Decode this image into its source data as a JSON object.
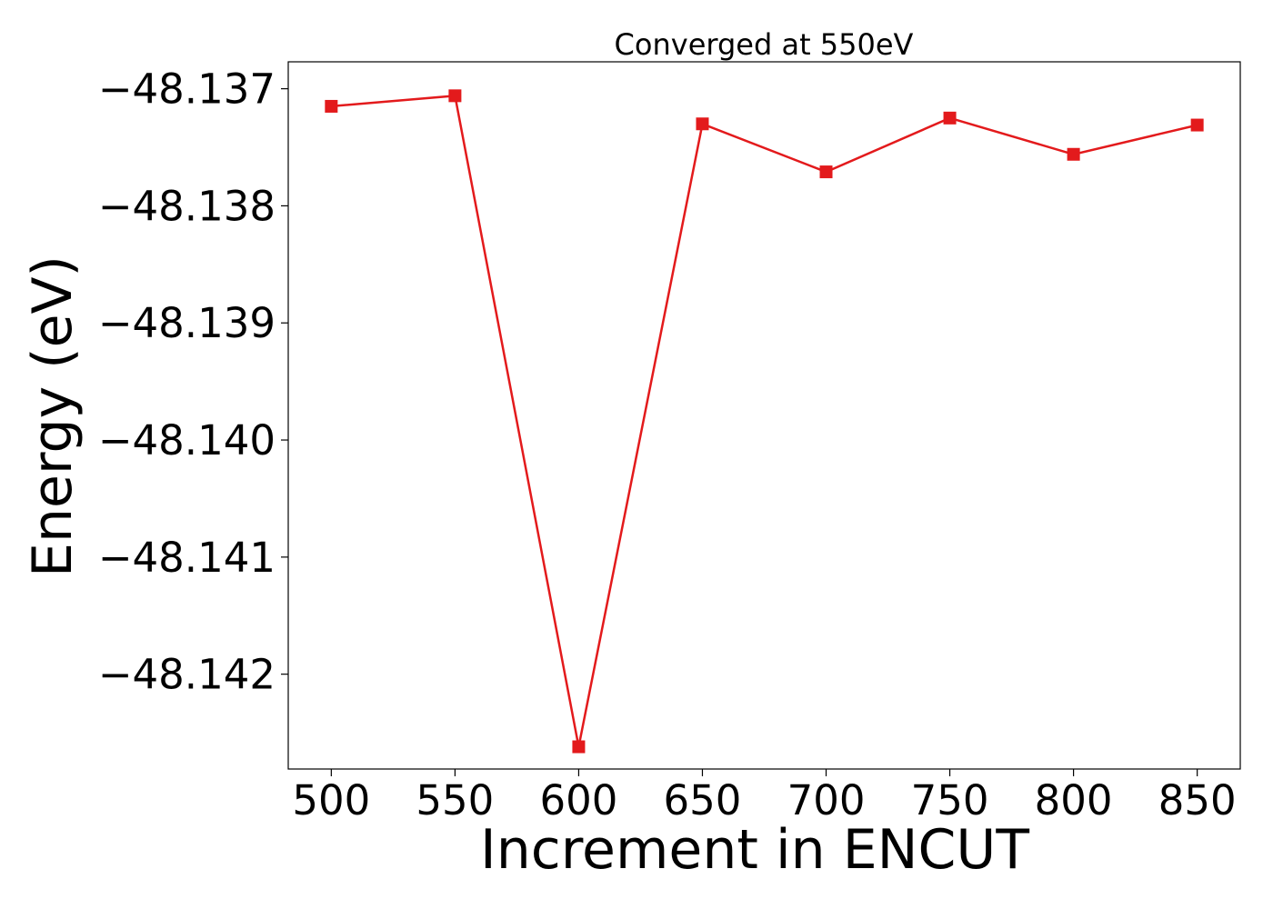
{
  "chart_data": {
    "type": "line",
    "title": "Converged at 550eV",
    "xlabel": "Increment in ENCUT",
    "ylabel": "Energy (eV)",
    "x": [
      500,
      550,
      600,
      650,
      700,
      750,
      800,
      850
    ],
    "xticks": [
      500,
      550,
      600,
      650,
      700,
      750,
      800,
      850
    ],
    "xtick_labels": [
      "500",
      "550",
      "600",
      "650",
      "700",
      "750",
      "800",
      "850"
    ],
    "yticks": [
      -48.137,
      -48.138,
      -48.139,
      -48.14,
      -48.141,
      -48.142
    ],
    "ytick_labels": [
      "−48.137",
      "−48.138",
      "−48.139",
      "−48.140",
      "−48.141",
      "−48.142"
    ],
    "xlim": [
      482.6,
      867.4
    ],
    "ylim": [
      -48.14281,
      -48.13677
    ],
    "grid": false,
    "series": [
      {
        "color": "#e31a1c",
        "marker": "square",
        "values": [
          -48.13715,
          -48.13706,
          -48.14262,
          -48.1373,
          -48.13771,
          -48.13725,
          -48.13756,
          -48.13731
        ]
      }
    ]
  }
}
